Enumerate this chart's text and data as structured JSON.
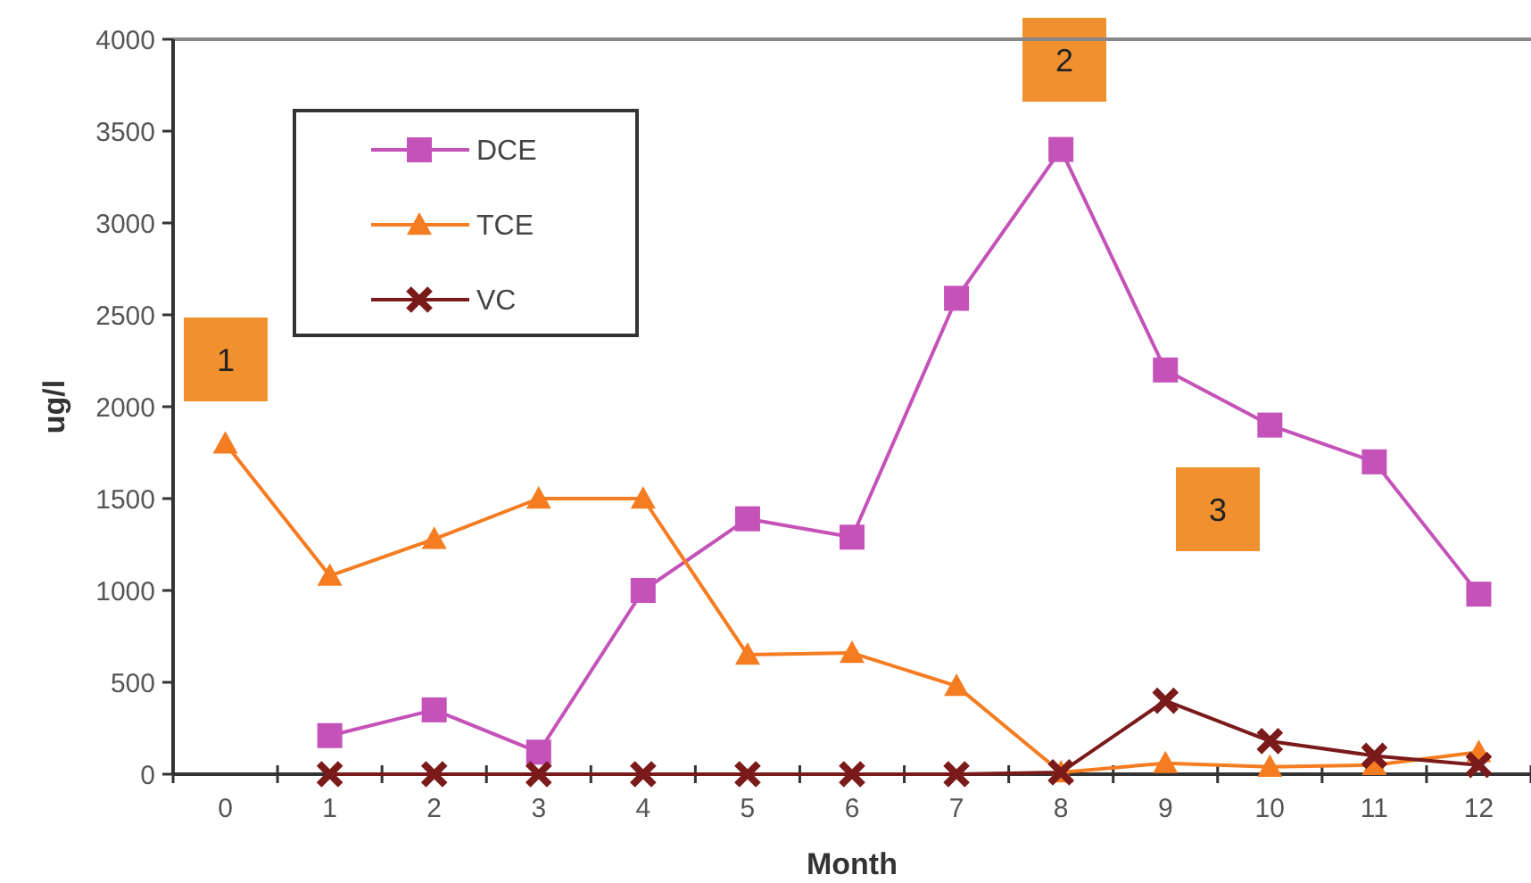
{
  "chart_data": {
    "type": "line",
    "xlabel": "Month",
    "ylabel": "ug/l",
    "x": [
      0,
      1,
      2,
      3,
      4,
      5,
      6,
      7,
      8,
      9,
      10,
      11,
      12
    ],
    "xlim": [
      -0.5,
      12.5
    ],
    "xticks": [
      0,
      1,
      2,
      3,
      4,
      5,
      6,
      7,
      8,
      9,
      10,
      11,
      12,
      {
        "value": -0.5,
        "label": null
      },
      {
        "value": 0.5,
        "label": null
      },
      {
        "value": 1.5,
        "label": null
      },
      {
        "value": 2.5,
        "label": null
      },
      {
        "value": 3.5,
        "label": null
      },
      {
        "value": 4.5,
        "label": null
      },
      {
        "value": 5.5,
        "label": null
      },
      {
        "value": 6.5,
        "label": null
      },
      {
        "value": 7.5,
        "label": null
      },
      {
        "value": 8.5,
        "label": null
      },
      {
        "value": 9.5,
        "label": null
      },
      {
        "value": 10.5,
        "label": null
      },
      {
        "value": 11.5,
        "label": null
      },
      {
        "value": 12.5,
        "label": null
      }
    ],
    "series": [
      {
        "name": "DCE",
        "color": "#c452b8",
        "marker": "square",
        "values": [
          null,
          210,
          350,
          120,
          1000,
          1390,
          1290,
          2590,
          3400,
          2200,
          1900,
          1700,
          980
        ]
      },
      {
        "name": "TCE",
        "color": "#f57c20",
        "marker": "triangle",
        "values": [
          1800,
          1080,
          1280,
          1500,
          1500,
          650,
          660,
          480,
          10,
          60,
          40,
          50,
          120
        ]
      },
      {
        "name": "VC",
        "color": "#7a1a1a",
        "marker": "cross",
        "values": [
          null,
          0,
          0,
          0,
          0,
          0,
          0,
          0,
          10,
          400,
          180,
          100,
          50
        ]
      }
    ],
    "ylim": [
      0,
      4000
    ],
    "yticks": [
      0,
      500,
      1000,
      1500,
      2000,
      2500,
      3000,
      3500,
      4000
    ],
    "legend": "top left",
    "grid": false,
    "line_style": "solid",
    "annotations": [
      "1",
      "2",
      "3"
    ]
  }
}
